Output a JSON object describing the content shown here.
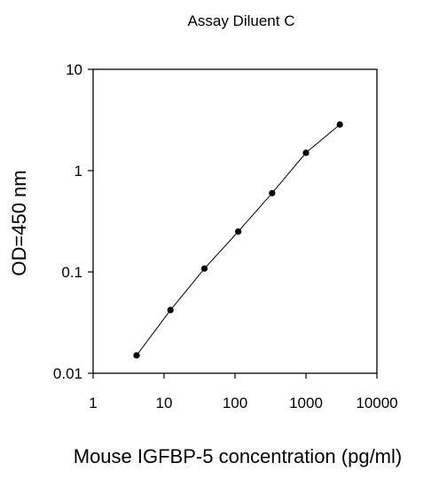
{
  "chart_data": {
    "type": "line",
    "title": "Assay Diluent C",
    "xlabel": "Mouse IGFBP-5 concentration (pg/ml)",
    "ylabel": "OD=450 nm",
    "xscale": "log",
    "yscale": "log",
    "xlim": [
      1,
      10000
    ],
    "ylim": [
      0.01,
      10
    ],
    "xticks": [
      "1",
      "10",
      "100",
      "1000",
      "10000"
    ],
    "yticks": [
      "0.01",
      "0.1",
      "1",
      "10"
    ],
    "grid": false,
    "legend": "none",
    "colors": {
      "line": "#000000",
      "marker": "#000000",
      "axis": "#000000"
    },
    "series": [
      {
        "x": [
          4.1,
          12.3,
          37,
          111,
          333,
          1000,
          3000
        ],
        "y": [
          0.015,
          0.042,
          0.108,
          0.25,
          0.6,
          1.5,
          2.85
        ]
      }
    ]
  }
}
